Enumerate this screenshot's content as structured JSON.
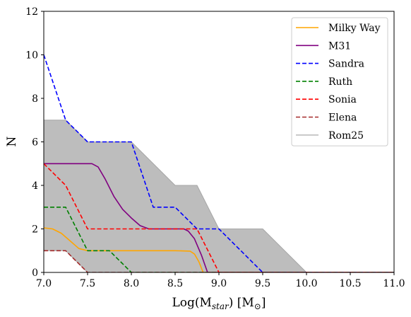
{
  "chart_data": {
    "type": "line",
    "xlabel": "Log(M",
    "xlabel_sub": "star",
    "xlabel_unit": ") [M",
    "xlabel_unit_sub": "⊙",
    "xlabel_end": "]",
    "ylabel": "N",
    "xlim": [
      7.0,
      11.0
    ],
    "ylim": [
      0,
      12
    ],
    "xticks": [
      7.0,
      7.5,
      8.0,
      8.5,
      9.0,
      9.5,
      10.0,
      10.5,
      11.0
    ],
    "xtick_labels": [
      "7.0",
      "7.5",
      "8.0",
      "8.5",
      "9.0",
      "9.5",
      "10.0",
      "10.5",
      "11.0"
    ],
    "yticks": [
      0,
      2,
      4,
      6,
      8,
      10,
      12
    ],
    "ytick_labels": [
      "0",
      "2",
      "4",
      "6",
      "8",
      "10",
      "12"
    ],
    "grid": false,
    "legend_position": "top-right",
    "band": {
      "name": "Rom25",
      "color": "#bdbdbd",
      "upper": [
        [
          7.0,
          7
        ],
        [
          7.25,
          7
        ],
        [
          7.5,
          6
        ],
        [
          8.0,
          6
        ],
        [
          8.5,
          4
        ],
        [
          8.75,
          4
        ],
        [
          9.0,
          2
        ],
        [
          9.5,
          2
        ],
        [
          10.0,
          0
        ]
      ],
      "lower": [
        [
          7.0,
          1
        ],
        [
          7.25,
          1
        ],
        [
          7.5,
          0
        ],
        [
          11.0,
          0
        ]
      ]
    },
    "series": [
      {
        "name": "Milky Way",
        "color": "#ffa500",
        "dash": "solid",
        "points": [
          [
            7.0,
            2.05
          ],
          [
            7.1,
            2.0
          ],
          [
            7.2,
            1.8
          ],
          [
            7.3,
            1.45
          ],
          [
            7.4,
            1.1
          ],
          [
            7.5,
            1.0
          ],
          [
            8.0,
            1.0
          ],
          [
            8.5,
            1.0
          ],
          [
            8.67,
            0.98
          ],
          [
            8.72,
            0.85
          ],
          [
            8.77,
            0.5
          ],
          [
            8.82,
            0.0
          ],
          [
            11.0,
            0.0
          ]
        ]
      },
      {
        "name": "M31",
        "color": "#800080",
        "dash": "solid",
        "points": [
          [
            7.0,
            5.0
          ],
          [
            7.5,
            5.0
          ],
          [
            7.55,
            5.0
          ],
          [
            7.62,
            4.85
          ],
          [
            7.7,
            4.3
          ],
          [
            7.8,
            3.5
          ],
          [
            7.9,
            2.9
          ],
          [
            8.0,
            2.5
          ],
          [
            8.1,
            2.15
          ],
          [
            8.2,
            2.0
          ],
          [
            8.6,
            2.0
          ],
          [
            8.65,
            1.9
          ],
          [
            8.72,
            1.55
          ],
          [
            8.8,
            0.8
          ],
          [
            8.87,
            0.0
          ],
          [
            11.0,
            0.0
          ]
        ]
      },
      {
        "name": "Sandra",
        "color": "#0000ff",
        "dash": "dashed",
        "points": [
          [
            7.0,
            10.0
          ],
          [
            7.25,
            7.0
          ],
          [
            7.5,
            6.0
          ],
          [
            8.0,
            6.0
          ],
          [
            8.25,
            3.0
          ],
          [
            8.5,
            3.0
          ],
          [
            8.75,
            2.0
          ],
          [
            9.0,
            2.0
          ],
          [
            9.5,
            0.0
          ],
          [
            11.0,
            0.0
          ]
        ]
      },
      {
        "name": "Ruth",
        "color": "#008000",
        "dash": "dashed",
        "points": [
          [
            7.0,
            3.0
          ],
          [
            7.25,
            3.0
          ],
          [
            7.5,
            1.0
          ],
          [
            7.75,
            1.0
          ],
          [
            8.0,
            0.0
          ],
          [
            11.0,
            0.0
          ]
        ]
      },
      {
        "name": "Sonia",
        "color": "#ff0000",
        "dash": "dashed",
        "points": [
          [
            7.0,
            5.0
          ],
          [
            7.25,
            4.0
          ],
          [
            7.5,
            2.0
          ],
          [
            8.75,
            2.0
          ],
          [
            9.0,
            0.0
          ],
          [
            11.0,
            0.0
          ]
        ]
      },
      {
        "name": "Elena",
        "color": "#a52a2a",
        "dash": "dashed",
        "points": [
          [
            7.0,
            1.0
          ],
          [
            7.25,
            1.0
          ],
          [
            7.5,
            0.0
          ],
          [
            11.0,
            0.0
          ]
        ]
      }
    ]
  }
}
